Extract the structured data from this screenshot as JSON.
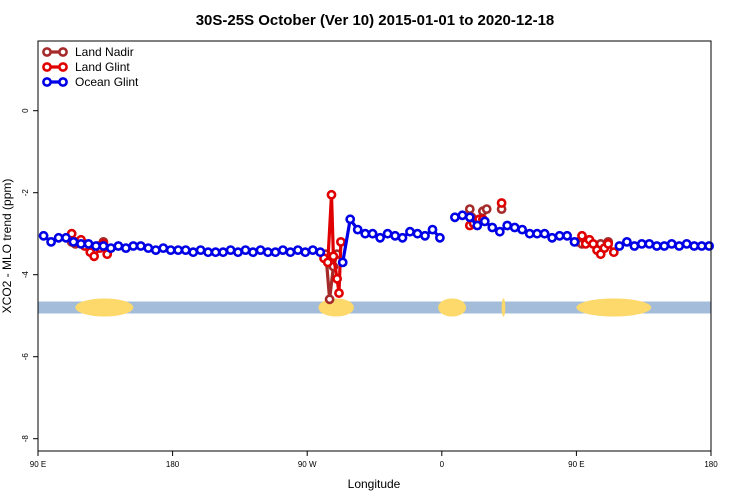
{
  "chart_data": {
    "type": "line",
    "title": "30S-25S October (Ver 10)   2015-01-01 to 2020-12-18",
    "xlabel": "Longitude",
    "ylabel": "XCO2 - MLO trend (ppm)",
    "xlim": [
      90,
      450
    ],
    "ylim": [
      -8.3,
      1.7
    ],
    "x_ticks": [
      {
        "value": 90,
        "label": "90 E"
      },
      {
        "value": 162,
        "label": "180"
      },
      {
        "value": 234,
        "label": "90 W"
      },
      {
        "value": 306,
        "label": "0"
      },
      {
        "value": 378,
        "label": "90 E"
      },
      {
        "value": 450,
        "label": "180"
      }
    ],
    "y_ticks": [
      {
        "value": 0,
        "label": "0"
      },
      {
        "value": -2,
        "label": "-2"
      },
      {
        "value": -4,
        "label": "-4"
      },
      {
        "value": -6,
        "label": "-6"
      },
      {
        "value": -8,
        "label": "-8"
      }
    ],
    "legend": {
      "position": "top-left"
    },
    "land_band": {
      "y": -4.8,
      "ocean_color": "#a3bcd9",
      "land_color": "#fcd96a",
      "land_segments": [
        [
          110,
          141
        ],
        [
          240,
          259
        ],
        [
          304,
          319
        ],
        [
          338,
          340
        ],
        [
          378,
          418
        ]
      ]
    },
    "series": [
      {
        "name": "Land Nadir",
        "color": "#a52a2a",
        "points": [
          [
            108,
            -3.2
          ],
          [
            110,
            -3.25
          ],
          [
            113,
            -3.2
          ],
          [
            115,
            -3.25
          ],
          [
            122,
            -3.3
          ],
          [
            125,
            -3.2
          ],
          [
            244,
            -3.5
          ],
          [
            246,
            -4.6
          ],
          [
            248,
            -3.8
          ],
          [
            250,
            -3.5
          ],
          [
            321,
            -2.4
          ],
          [
            322,
            -2.6
          ],
          [
            325,
            -2.75
          ],
          [
            328,
            -2.45
          ],
          [
            330,
            -2.4
          ],
          [
            338,
            -2.4
          ],
          [
            379,
            -3.2
          ],
          [
            381,
            -3.25
          ],
          [
            384,
            -3.2
          ],
          [
            391,
            -3.25
          ],
          [
            395,
            -3.2
          ]
        ]
      },
      {
        "name": "Land Glint",
        "color": "#e00000",
        "points": [
          [
            108,
            -3.0
          ],
          [
            110,
            -3.2
          ],
          [
            113,
            -3.15
          ],
          [
            115,
            -3.3
          ],
          [
            118,
            -3.45
          ],
          [
            120,
            -3.55
          ],
          [
            123,
            -3.35
          ],
          [
            125,
            -3.25
          ],
          [
            127,
            -3.5
          ],
          [
            243,
            -3.6
          ],
          [
            245,
            -3.7
          ],
          [
            247,
            -2.05
          ],
          [
            248,
            -3.55
          ],
          [
            250,
            -4.1
          ],
          [
            251,
            -4.45
          ],
          [
            252,
            -3.2
          ],
          [
            321,
            -2.8
          ],
          [
            323,
            -2.75
          ],
          [
            326,
            -2.65
          ],
          [
            328,
            -2.65
          ],
          [
            338,
            -2.25
          ],
          [
            381,
            -3.05
          ],
          [
            383,
            -3.25
          ],
          [
            385,
            -3.15
          ],
          [
            387,
            -3.25
          ],
          [
            389,
            -3.4
          ],
          [
            391,
            -3.5
          ],
          [
            393,
            -3.35
          ],
          [
            395,
            -3.25
          ],
          [
            398,
            -3.45
          ]
        ]
      },
      {
        "name": "Ocean Glint",
        "color": "#0000e6",
        "points": [
          [
            93,
            -3.05
          ],
          [
            97,
            -3.2
          ],
          [
            101,
            -3.1
          ],
          [
            105,
            -3.1
          ],
          [
            109,
            -3.2
          ],
          [
            113,
            -3.25
          ],
          [
            117,
            -3.25
          ],
          [
            121,
            -3.3
          ],
          [
            125,
            -3.3
          ],
          [
            129,
            -3.35
          ],
          [
            133,
            -3.3
          ],
          [
            137,
            -3.35
          ],
          [
            141,
            -3.3
          ],
          [
            145,
            -3.3
          ],
          [
            149,
            -3.35
          ],
          [
            153,
            -3.4
          ],
          [
            157,
            -3.35
          ],
          [
            161,
            -3.4
          ],
          [
            165,
            -3.4
          ],
          [
            169,
            -3.4
          ],
          [
            173,
            -3.45
          ],
          [
            177,
            -3.4
          ],
          [
            181,
            -3.45
          ],
          [
            185,
            -3.45
          ],
          [
            189,
            -3.45
          ],
          [
            193,
            -3.4
          ],
          [
            197,
            -3.45
          ],
          [
            201,
            -3.4
          ],
          [
            205,
            -3.45
          ],
          [
            209,
            -3.4
          ],
          [
            213,
            -3.45
          ],
          [
            217,
            -3.45
          ],
          [
            221,
            -3.4
          ],
          [
            225,
            -3.45
          ],
          [
            229,
            -3.4
          ],
          [
            233,
            -3.45
          ],
          [
            237,
            -3.4
          ],
          [
            241,
            -3.45
          ],
          [
            253,
            -3.7
          ],
          [
            257,
            -2.65
          ],
          [
            261,
            -2.9
          ],
          [
            265,
            -3.0
          ],
          [
            269,
            -3.0
          ],
          [
            273,
            -3.1
          ],
          [
            277,
            -3.0
          ],
          [
            281,
            -3.05
          ],
          [
            285,
            -3.1
          ],
          [
            289,
            -2.95
          ],
          [
            293,
            -3.0
          ],
          [
            297,
            -3.05
          ],
          [
            301,
            -2.9
          ],
          [
            305,
            -3.1
          ],
          [
            313,
            -2.6
          ],
          [
            317,
            -2.55
          ],
          [
            321,
            -2.6
          ],
          [
            325,
            -2.8
          ],
          [
            329,
            -2.7
          ],
          [
            333,
            -2.85
          ],
          [
            337,
            -2.95
          ],
          [
            341,
            -2.8
          ],
          [
            345,
            -2.85
          ],
          [
            349,
            -2.9
          ],
          [
            353,
            -3.0
          ],
          [
            357,
            -3.0
          ],
          [
            361,
            -3.0
          ],
          [
            365,
            -3.1
          ],
          [
            369,
            -3.05
          ],
          [
            373,
            -3.05
          ],
          [
            377,
            -3.2
          ],
          [
            401,
            -3.3
          ],
          [
            405,
            -3.2
          ],
          [
            409,
            -3.3
          ],
          [
            413,
            -3.25
          ],
          [
            417,
            -3.25
          ],
          [
            421,
            -3.3
          ],
          [
            425,
            -3.3
          ],
          [
            429,
            -3.25
          ],
          [
            433,
            -3.3
          ],
          [
            437,
            -3.25
          ],
          [
            441,
            -3.3
          ],
          [
            445,
            -3.3
          ],
          [
            449,
            -3.3
          ]
        ]
      }
    ]
  }
}
